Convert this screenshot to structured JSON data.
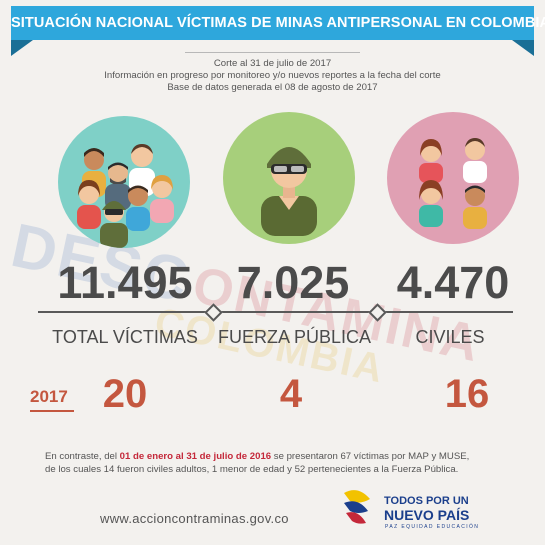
{
  "header": {
    "title": "SITUACIÓN NACIONAL VÍCTIMAS DE MINAS ANTIPERSONAL EN COLOMBIA",
    "sub1": "Corte al 31 de julio de 2017",
    "sub2": "Información en progreso por monitoreo y/o nuevos reportes a la fecha del corte",
    "sub3": "Base de datos generada el 08 de agosto de 2017",
    "banner_color": "#2ea7dc"
  },
  "watermark": {
    "line1": "DESC",
    "line2": "ONTAMINA",
    "line3": "COLOMBIA"
  },
  "stats": [
    {
      "icon": "group-people-icon",
      "value": "11.495",
      "label": "TOTAL VÍCTIMAS",
      "year_value": "20",
      "circle_color": "#7fd0c7"
    },
    {
      "icon": "soldier-icon",
      "value": "7.025",
      "label": "FUERZA PÚBLICA",
      "year_value": "4",
      "circle_color": "#a7cf7b"
    },
    {
      "icon": "civilians-icon",
      "value": "4.470",
      "label": "CIVILES",
      "year_value": "16",
      "circle_color": "#e0a0b3"
    }
  ],
  "year_label": "2017",
  "accent_color": "#c4573f",
  "contrast": {
    "p1": "En contraste, del ",
    "p2": "01 de enero al 31 de julio de 2016",
    "p3": " se presentaron 67 víctimas por MAP y MUSE,",
    "line2": "de los cuales 14 fueron civiles adultos, 1 menor de edad y 52 pertenecientes a la Fuerza Pública."
  },
  "footer": {
    "url": "www.accioncontraminas.gov.co",
    "logo_line1": "TODOS POR UN",
    "logo_line2": "NUEVO PAÍS",
    "logo_line3": "PAZ   EQUIDAD   EDUCACIÓN"
  }
}
